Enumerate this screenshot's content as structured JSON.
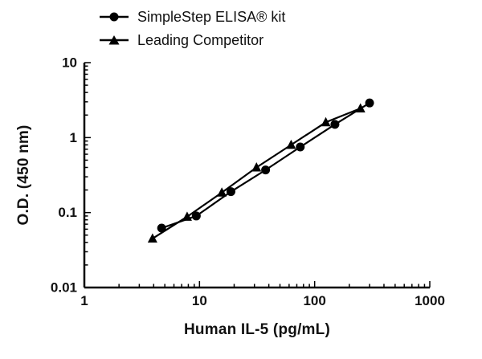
{
  "chart_data": {
    "type": "line",
    "title": "",
    "x_label": "Human IL-5 (pg/mL)",
    "y_label": "O.D. (450 nm)",
    "x_scale": "log",
    "y_scale": "log",
    "x_range": [
      1,
      1000
    ],
    "y_range": [
      0.01,
      10
    ],
    "x_ticks": [
      1,
      10,
      100,
      1000
    ],
    "x_tick_labels": [
      "1",
      "10",
      "100",
      "1000"
    ],
    "y_ticks": [
      0.01,
      0.1,
      1,
      10
    ],
    "y_tick_labels": [
      "0.01",
      "0.1",
      "1",
      "10"
    ],
    "grid": false,
    "legend_position": "top-left",
    "series": [
      {
        "name": "SimpleStep ELISA® kit",
        "marker": "circle",
        "color": "#000000",
        "x": [
          4.69,
          9.38,
          18.75,
          37.5,
          75,
          150,
          300
        ],
        "y": [
          0.062,
          0.09,
          0.19,
          0.37,
          0.75,
          1.5,
          2.9
        ]
      },
      {
        "name": "Leading Competitor",
        "marker": "triangle",
        "color": "#000000",
        "x": [
          3.91,
          7.81,
          15.63,
          31.25,
          62.5,
          125,
          250
        ],
        "y": [
          0.045,
          0.088,
          0.185,
          0.4,
          0.8,
          1.6,
          2.45
        ]
      }
    ]
  }
}
